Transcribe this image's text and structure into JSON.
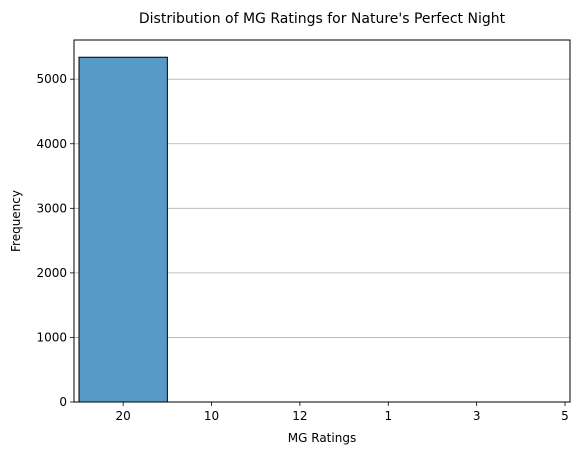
{
  "chart_data": {
    "type": "bar",
    "title": "Distribution of MG Ratings for Nature's Perfect Night",
    "xlabel": "MG Ratings",
    "ylabel": "Frequency",
    "categories": [
      "20",
      "10",
      "12",
      "1",
      "3",
      "5"
    ],
    "values": [
      5340,
      0,
      0,
      0,
      0,
      0
    ],
    "ylim": [
      0,
      5607
    ],
    "yticks": [
      0,
      1000,
      2000,
      3000,
      4000,
      5000
    ],
    "grid": "y",
    "colors": {
      "bar": "#5799c7",
      "edge": "#000000",
      "grid": "#b0b0b0"
    }
  }
}
